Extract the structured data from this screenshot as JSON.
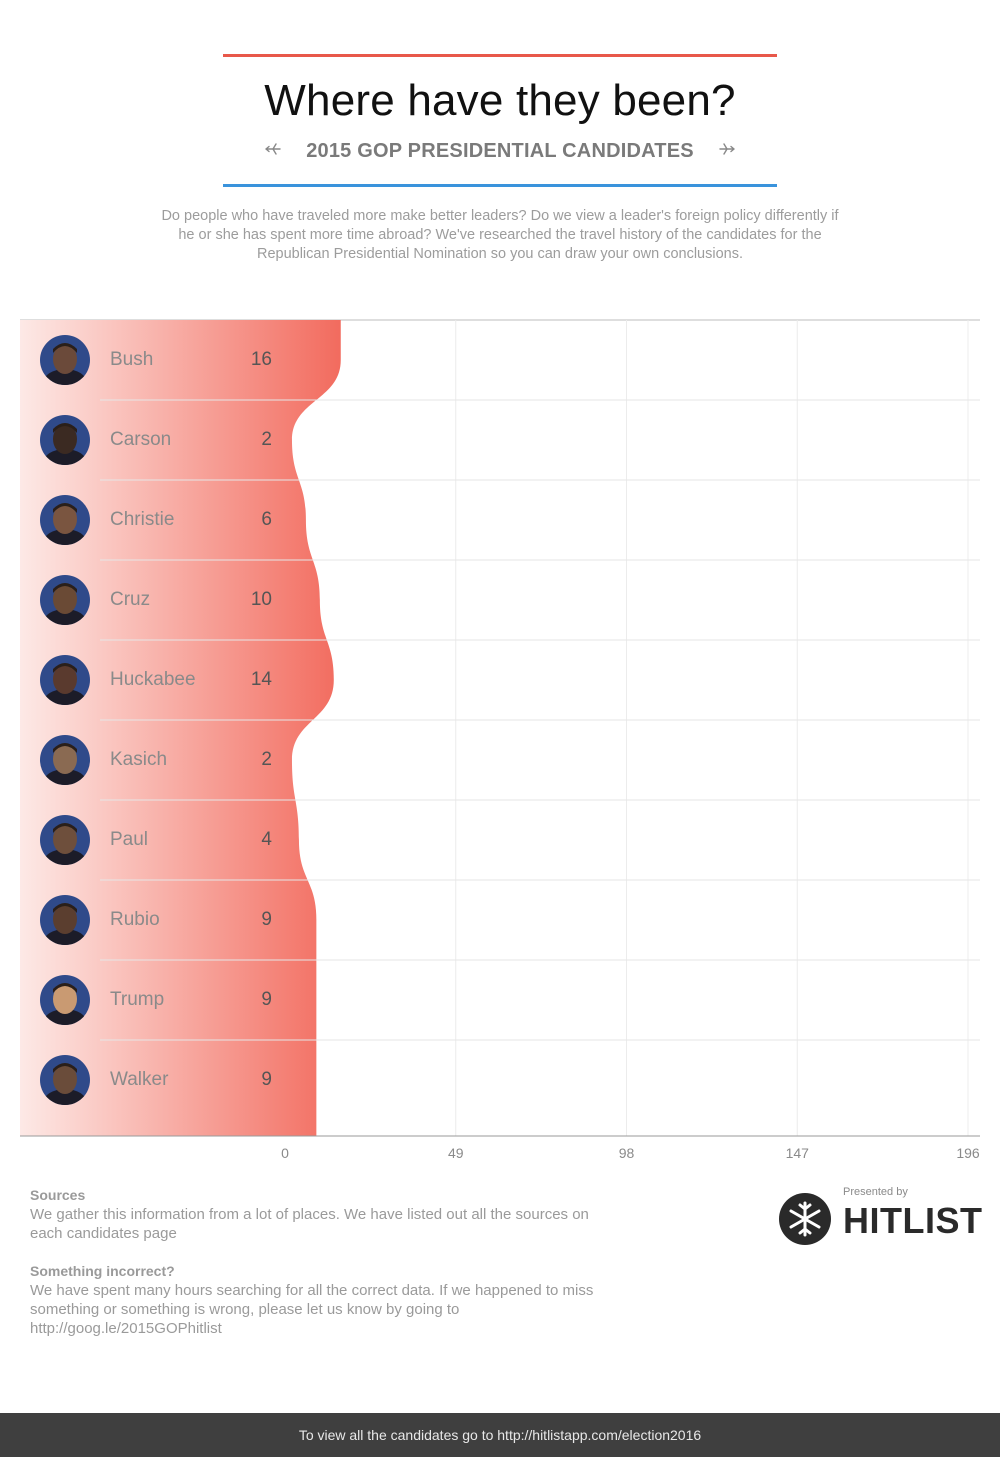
{
  "header": {
    "title": "Where have they been?",
    "subtitle": "2015 GOP PRESIDENTIAL CANDIDATES",
    "plane_left_icon": "plane-left-icon",
    "plane_right_icon": "plane-right-icon",
    "intro": "Do people who have traveled more make better leaders? Do we view a leader's foreign policy differently if he or she has spent more time abroad? We've researched the travel history of the candidates for the Republican Presidential Nomination so you can draw your own conclusions.",
    "colors": {
      "top_rule": "#e8584a",
      "bottom_rule": "#3a93dc"
    }
  },
  "chart_data": {
    "type": "area",
    "orientation": "horizontal",
    "categories": [
      "Bush",
      "Carson",
      "Christie",
      "Cruz",
      "Huckabee",
      "Kasich",
      "Paul",
      "Rubio",
      "Trump",
      "Walker"
    ],
    "values": [
      16,
      2,
      6,
      10,
      14,
      2,
      4,
      9,
      9,
      9
    ],
    "x_ticks": [
      "0",
      "49",
      "98",
      "147",
      "196"
    ],
    "xlim": [
      0,
      196
    ],
    "grid": true,
    "fill_color": "#f26b5e"
  },
  "footer": {
    "sources_heading": "Sources",
    "sources_text": "We gather this information from a lot of places. We have listed out all the sources on each candidates page",
    "incorrect_heading": "Something incorrect?",
    "incorrect_text": "We have spent many hours searching for all the correct data. If we happened to miss something or something is wrong, please let us know by going to http://goog.le/2015GOPhitlist",
    "presented_by": "Presented by",
    "brand": "HITLIST",
    "brand_icon": "snowflake-logo-icon",
    "bottom_bar": "To view all the candidates go to http://hitlistapp.com/election2016"
  }
}
